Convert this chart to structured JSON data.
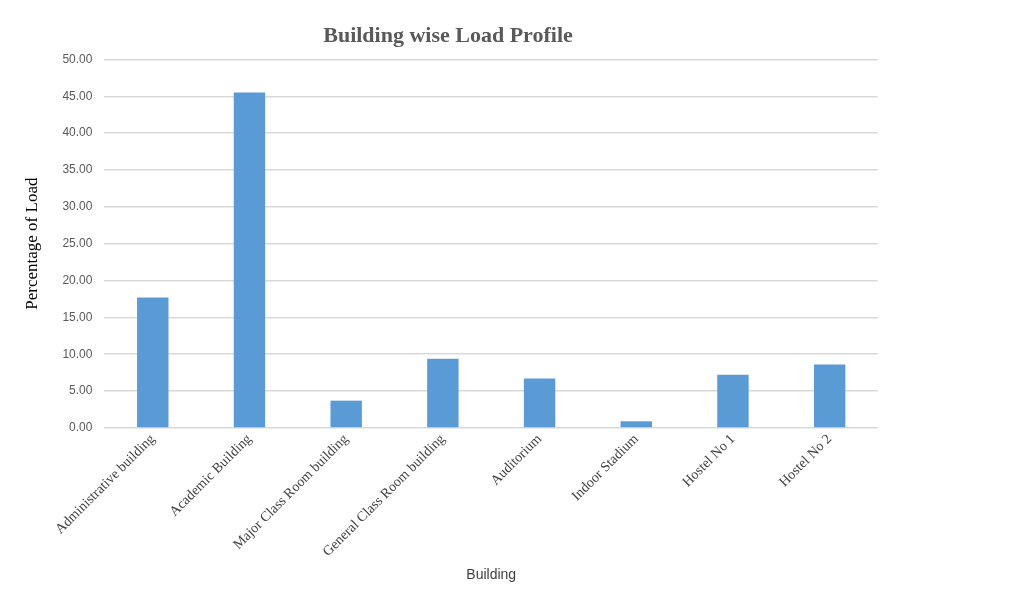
{
  "chart_data": {
    "type": "bar",
    "title": "Building wise Load Profile",
    "xlabel": "Building",
    "ylabel": "Percentage of Load",
    "categories": [
      "Administrative building",
      "Academic Building",
      "Major Class Room building",
      "General Class Room building",
      "Auditorium",
      "Indoor Stadium",
      "Hostel No 1",
      "Hostel No 2"
    ],
    "values": [
      17.7,
      45.5,
      3.7,
      9.4,
      6.7,
      0.9,
      7.2,
      8.6
    ],
    "color": "#5b9bd5",
    "ylim": [
      0,
      50
    ],
    "yticks": [
      {
        "value": 0,
        "label": "0.00"
      },
      {
        "value": 5,
        "label": "5.00"
      },
      {
        "value": 10,
        "label": "10.00"
      },
      {
        "value": 15,
        "label": "15.00"
      },
      {
        "value": 20,
        "label": "20.00"
      },
      {
        "value": 25,
        "label": "25.00"
      },
      {
        "value": 30,
        "label": "30.00"
      },
      {
        "value": 35,
        "label": "35.00"
      },
      {
        "value": 40,
        "label": "40.00"
      },
      {
        "value": 45,
        "label": "45.00"
      },
      {
        "value": 50,
        "label": "50.00"
      }
    ],
    "grid": "y"
  }
}
